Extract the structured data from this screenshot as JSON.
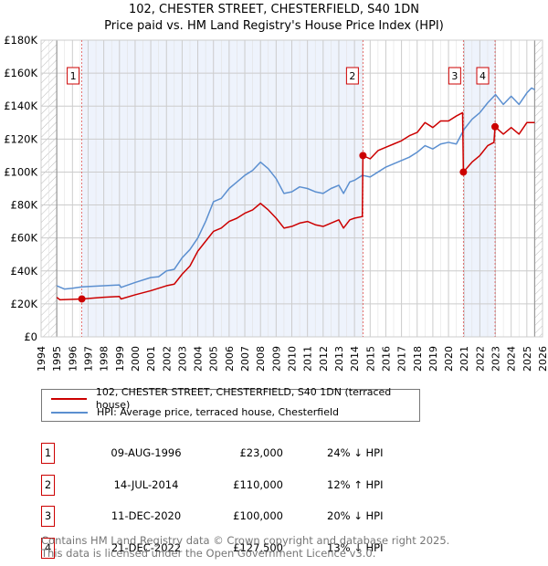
{
  "title": "102, CHESTER STREET, CHESTERFIELD, S40 1DN",
  "subtitle": "Price paid vs. HM Land Registry's House Price Index (HPI)",
  "chart_data": {
    "type": "line",
    "title": "102, CHESTER STREET, CHESTERFIELD, S40 1DN",
    "subtitle": "Price paid vs. HM Land Registry's House Price Index (HPI)",
    "xlim": [
      1994,
      2026
    ],
    "ylim": [
      0,
      180000
    ],
    "yticks": [
      0,
      20000,
      40000,
      60000,
      80000,
      100000,
      120000,
      140000,
      160000,
      180000
    ],
    "ytick_labels": [
      "£0",
      "£20K",
      "£40K",
      "£60K",
      "£80K",
      "£100K",
      "£120K",
      "£140K",
      "£160K",
      "£180K"
    ],
    "xticks": [
      1994,
      1995,
      1996,
      1997,
      1998,
      1999,
      2000,
      2001,
      2002,
      2003,
      2004,
      2005,
      2006,
      2007,
      2008,
      2009,
      2010,
      2011,
      2012,
      2013,
      2014,
      2015,
      2016,
      2017,
      2018,
      2019,
      2020,
      2021,
      2022,
      2023,
      2024,
      2025,
      2026
    ],
    "grid": true,
    "legend_placement": "below",
    "colors": {
      "property": "#cc0000",
      "hpi": "#5b8fd0",
      "shade": "#eef3fc"
    },
    "series": [
      {
        "name": "102, CHESTER STREET, CHESTERFIELD, S40 1DN (terraced house)",
        "color": "#cc0000",
        "x": [
          1995,
          1995.2,
          1996.6,
          1998,
          1999,
          1999.1,
          2000,
          2001,
          2002,
          2002.5,
          2003,
          2003.5,
          2004,
          2004.5,
          2005,
          2005.5,
          2006,
          2006.5,
          2007,
          2007.5,
          2008,
          2008.5,
          2009,
          2009.5,
          2010,
          2010.5,
          2011,
          2011.5,
          2012,
          2012.5,
          2013,
          2013.3,
          2013.7,
          2014,
          2014.5,
          2014.54,
          2015,
          2015.5,
          2016,
          2016.5,
          2017,
          2017.5,
          2018,
          2018.5,
          2019,
          2019.5,
          2020,
          2020.5,
          2020.9,
          2020.95,
          2021.5,
          2022,
          2022.5,
          2022.9,
          2022.97,
          2023.5,
          2024,
          2024.5,
          2025,
          2025.5
        ],
        "y": [
          24000,
          22500,
          23000,
          24000,
          24500,
          23000,
          25500,
          28000,
          31000,
          32000,
          38000,
          43000,
          52000,
          58000,
          64000,
          66000,
          70000,
          72000,
          75000,
          77000,
          81000,
          77000,
          72000,
          66000,
          67000,
          69000,
          70000,
          68000,
          67000,
          69000,
          71000,
          66000,
          71000,
          72000,
          73000,
          110000,
          108000,
          113000,
          115000,
          117000,
          119000,
          122000,
          124000,
          130000,
          127000,
          131000,
          131000,
          134000,
          136000,
          100000,
          106000,
          110000,
          116000,
          118000,
          127500,
          123000,
          127000,
          123000,
          130000,
          130000
        ]
      },
      {
        "name": "HPI: Average price, terraced house, Chesterfield",
        "color": "#5b8fd0",
        "x": [
          1995,
          1995.5,
          1996,
          1996.6,
          1997,
          1998,
          1999,
          1999.1,
          2000,
          2001,
          2001.5,
          2002,
          2002.5,
          2003,
          2003.5,
          2004,
          2004.5,
          2005,
          2005.5,
          2006,
          2006.5,
          2007,
          2007.5,
          2008,
          2008.5,
          2009,
          2009.5,
          2010,
          2010.5,
          2011,
          2011.5,
          2012,
          2012.5,
          2013,
          2013.3,
          2013.7,
          2014,
          2014.5,
          2015,
          2015.5,
          2016,
          2016.5,
          2017,
          2017.5,
          2018,
          2018.5,
          2019,
          2019.5,
          2020,
          2020.5,
          2021,
          2021.5,
          2022,
          2022.5,
          2023,
          2023.5,
          2024,
          2024.5,
          2025,
          2025.3,
          2025.5
        ],
        "y": [
          31000,
          29000,
          29500,
          30300,
          30500,
          31000,
          31500,
          30000,
          33000,
          36000,
          36500,
          40000,
          41000,
          48000,
          53000,
          60000,
          70000,
          82000,
          84000,
          90000,
          94000,
          98000,
          101000,
          106000,
          102000,
          96000,
          87000,
          88000,
          91000,
          90000,
          88000,
          87000,
          90000,
          92000,
          87000,
          94000,
          95000,
          98000,
          97000,
          100000,
          103000,
          105000,
          107000,
          109000,
          112000,
          116000,
          114000,
          117000,
          118000,
          117000,
          126000,
          132000,
          136000,
          142000,
          147000,
          141000,
          146000,
          141000,
          148000,
          151000,
          150000
        ]
      }
    ],
    "sales": [
      {
        "id": "1",
        "x": 1996.6,
        "date": "09-AUG-1996",
        "price": 23000,
        "price_label": "£23,000",
        "hpi": "24% ↓ HPI"
      },
      {
        "id": "2",
        "x": 2014.54,
        "date": "14-JUL-2014",
        "price": 110000,
        "price_label": "£110,000",
        "hpi": "12% ↑ HPI"
      },
      {
        "id": "3",
        "x": 2020.95,
        "date": "11-DEC-2020",
        "price": 100000,
        "price_label": "£100,000",
        "hpi": "20% ↓ HPI"
      },
      {
        "id": "4",
        "x": 2022.97,
        "date": "21-DEC-2022",
        "price": 127500,
        "price_label": "£127,500",
        "hpi": "13% ↓ HPI"
      }
    ],
    "shaded_ranges": [
      [
        1996.6,
        2014.54
      ],
      [
        2020.95,
        2022.97
      ]
    ],
    "hatched_ranges": [
      [
        1994,
        1995
      ],
      [
        2025.5,
        2026
      ]
    ]
  },
  "legend": {
    "property": "102, CHESTER STREET, CHESTERFIELD, S40 1DN (terraced house)",
    "hpi": "HPI: Average price, terraced house, Chesterfield"
  },
  "footer": {
    "line1": "Contains HM Land Registry data © Crown copyright and database right 2025.",
    "line2": "This data is licensed under the Open Government Licence v3.0."
  }
}
